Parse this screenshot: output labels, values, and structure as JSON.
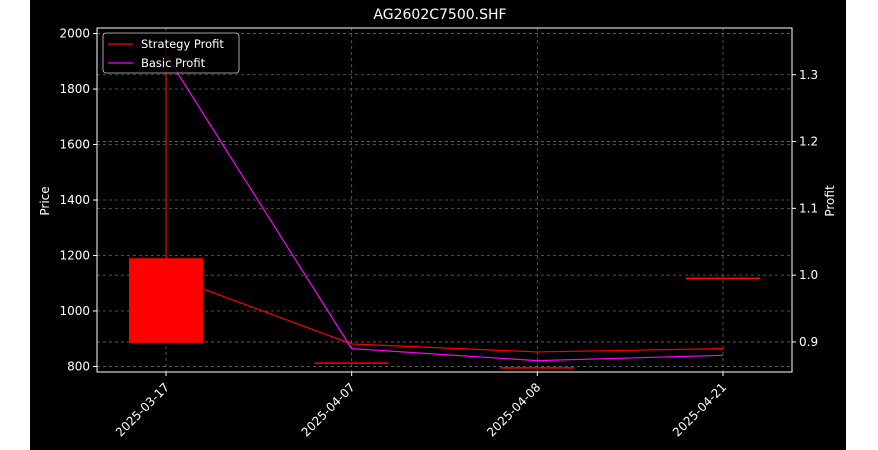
{
  "chart_data": {
    "type": "candlestick-line",
    "title": "AG2602C7500.SHF",
    "xlabel": "",
    "ylabel": "Price",
    "ylabel_right": "Profit",
    "categories": [
      "2025-03-17",
      "2025-04-07",
      "2025-04-08",
      "2025-04-21"
    ],
    "ylim": [
      780,
      2020
    ],
    "ylim_right": [
      0.855,
      1.37
    ],
    "y_ticks": [
      800,
      1000,
      1200,
      1400,
      1600,
      1800,
      2000
    ],
    "y_ticks_right": [
      0.9,
      1.0,
      1.1,
      1.2,
      1.3
    ],
    "grid": true,
    "legend_position": "top-left",
    "candles": [
      {
        "date": "2025-03-17",
        "open": 1190,
        "high": 2000,
        "low": 885,
        "close": 885
      },
      {
        "date": "2025-04-07",
        "open": 812,
        "high": 812,
        "low": 812,
        "close": 812
      },
      {
        "date": "2025-04-08",
        "open": 795,
        "high": 795,
        "low": 795,
        "close": 795
      },
      {
        "date": "2025-04-21",
        "open": 1118,
        "high": 1118,
        "low": 1118,
        "close": 1118
      }
    ],
    "series": [
      {
        "name": "Strategy Profit",
        "axis": "right",
        "color": "#ff0000",
        "values": [
          1.0,
          0.897,
          0.885,
          0.89
        ]
      },
      {
        "name": "Basic Profit",
        "axis": "right",
        "color": "#ff00ff",
        "values": [
          1.33,
          0.89,
          0.872,
          0.88
        ]
      }
    ],
    "colors": {
      "candle": "#ff0000",
      "background": "#000000",
      "text": "#ffffff",
      "grid": "#666666"
    }
  }
}
